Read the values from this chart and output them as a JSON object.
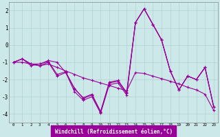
{
  "xlabel": "Windchill (Refroidissement éolien,°C)",
  "x_values": [
    0,
    1,
    2,
    3,
    4,
    5,
    6,
    7,
    8,
    9,
    10,
    11,
    12,
    13,
    14,
    15,
    16,
    17,
    18,
    19,
    20,
    21,
    22,
    23
  ],
  "line1": [
    -1.0,
    -0.8,
    -1.2,
    -1.1,
    -0.9,
    -1.0,
    -1.6,
    -2.5,
    -3.1,
    -2.9,
    -3.9,
    -2.2,
    -2.1,
    -2.8,
    1.3,
    2.1,
    1.2,
    0.3,
    -1.5,
    -2.6,
    -1.8,
    -2.0,
    -1.3,
    -3.6
  ],
  "line2": [
    -1.0,
    -0.8,
    -1.1,
    -1.1,
    -0.95,
    -1.7,
    -1.55,
    -2.55,
    -3.05,
    -2.85,
    -3.85,
    -2.15,
    -2.05,
    -2.75,
    1.3,
    2.1,
    1.2,
    0.3,
    -1.5,
    -2.6,
    -1.8,
    -2.0,
    -1.3,
    -3.6
  ],
  "line3": [
    -1.0,
    -0.8,
    -1.1,
    -1.2,
    -1.0,
    -1.8,
    -1.6,
    -2.7,
    -3.2,
    -3.0,
    -3.95,
    -2.3,
    -2.2,
    -2.9,
    1.3,
    2.1,
    1.2,
    0.3,
    -1.5,
    -2.6,
    -1.8,
    -2.0,
    -1.3,
    -3.6
  ],
  "line4": [
    -1.0,
    -1.0,
    -1.1,
    -1.2,
    -1.1,
    -1.3,
    -1.5,
    -1.7,
    -1.9,
    -2.05,
    -2.2,
    -2.35,
    -2.5,
    -2.65,
    -1.6,
    -1.65,
    -1.8,
    -1.95,
    -2.1,
    -2.25,
    -2.45,
    -2.6,
    -2.85,
    -3.8
  ],
  "line_color": "#990099",
  "bg_color": "#cce8e8",
  "grid_color": "#aacccc",
  "ylim": [
    -4.5,
    2.5
  ],
  "yticks": [
    -4,
    -3,
    -2,
    -1,
    0,
    1,
    2
  ],
  "xlabel_bg": "#990099",
  "xlabel_fg": "#ffffff"
}
